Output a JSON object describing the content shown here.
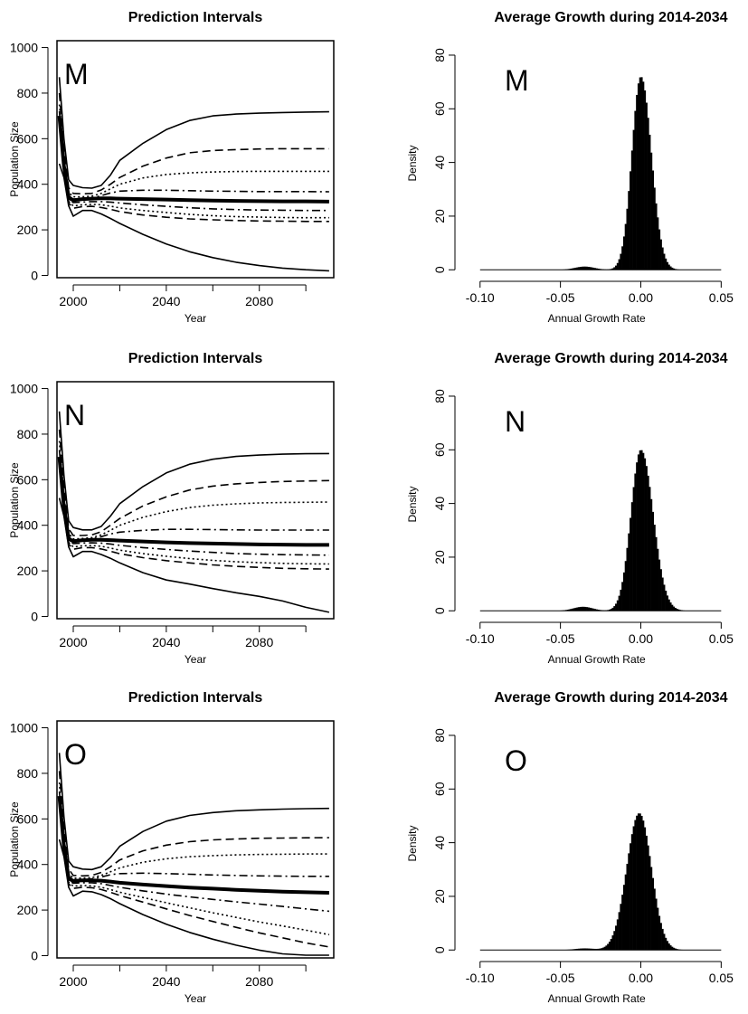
{
  "chart_data": [
    {
      "type": "line",
      "panel": "M",
      "title": "Prediction Intervals",
      "xlabel": "Year",
      "ylabel": "Population Size",
      "xlim": [
        1993,
        2112
      ],
      "ylim": [
        -10,
        1030
      ],
      "xticks": [
        2000,
        2040,
        2080
      ],
      "xticks_minor": [
        2020,
        2060,
        2100
      ],
      "yticks": [
        0,
        200,
        400,
        600,
        800,
        1000
      ],
      "x": [
        1994,
        1996,
        1998,
        2000,
        2004,
        2008,
        2012,
        2016,
        2020,
        2030,
        2040,
        2050,
        2060,
        2070,
        2080,
        2090,
        2100,
        2110
      ],
      "series": [
        {
          "style": "solid",
          "values": [
            870,
            600,
            420,
            395,
            385,
            383,
            395,
            440,
            505,
            580,
            640,
            680,
            700,
            708,
            712,
            715,
            717,
            718
          ]
        },
        {
          "style": "dashed",
          "values": [
            800,
            560,
            385,
            360,
            358,
            360,
            375,
            400,
            430,
            480,
            515,
            538,
            548,
            552,
            555,
            556,
            556,
            556
          ]
        },
        {
          "style": "dotted",
          "values": [
            750,
            520,
            365,
            345,
            345,
            348,
            360,
            380,
            400,
            428,
            443,
            450,
            454,
            456,
            457,
            457,
            457,
            457
          ]
        },
        {
          "style": "dashdot",
          "values": [
            720,
            500,
            350,
            335,
            335,
            340,
            350,
            362,
            370,
            374,
            374,
            372,
            370,
            369,
            368,
            368,
            368,
            367
          ]
        },
        {
          "style": "bold",
          "values": [
            700,
            480,
            340,
            330,
            335,
            337,
            338,
            338,
            337,
            335,
            333,
            330,
            328,
            327,
            326,
            325,
            325,
            324
          ]
        },
        {
          "style": "dashdot",
          "values": [
            690,
            470,
            332,
            320,
            322,
            324,
            324,
            322,
            318,
            310,
            303,
            297,
            292,
            289,
            287,
            286,
            285,
            285
          ]
        },
        {
          "style": "dotted",
          "values": [
            680,
            460,
            325,
            305,
            310,
            312,
            310,
            304,
            296,
            285,
            276,
            268,
            262,
            258,
            256,
            254,
            253,
            253
          ]
        },
        {
          "style": "dashed",
          "values": [
            670,
            450,
            318,
            295,
            302,
            303,
            298,
            290,
            280,
            265,
            255,
            248,
            244,
            241,
            239,
            238,
            237,
            237
          ]
        },
        {
          "style": "solid",
          "values": [
            490,
            430,
            305,
            260,
            285,
            285,
            270,
            250,
            228,
            180,
            138,
            104,
            78,
            58,
            43,
            32,
            25,
            20
          ]
        }
      ]
    },
    {
      "type": "bar",
      "panel": "M",
      "title": "Average Growth during 2014-2034",
      "xlabel": "Annual Growth Rate",
      "ylabel": "Density",
      "xlim": [
        -0.11,
        0.056
      ],
      "ylim": [
        -1.6,
        81
      ],
      "xticks": [
        "-0.10",
        "-0.05",
        "0.00",
        "0.05"
      ],
      "yticks": [
        0,
        20,
        40,
        60,
        80
      ],
      "histogram": {
        "center": 0.0,
        "peak": 72,
        "sigma_left": 0.0056,
        "sigma_right": 0.0065,
        "bin_width": 0.001,
        "range": [
          -0.06,
          0.04
        ],
        "tail_center": -0.035,
        "tail_height": 1.2
      }
    },
    {
      "type": "line",
      "panel": "N",
      "title": "Prediction Intervals",
      "xlabel": "Year",
      "ylabel": "Population Size",
      "xlim": [
        1993,
        2112
      ],
      "ylim": [
        -10,
        1030
      ],
      "xticks": [
        2000,
        2040,
        2080
      ],
      "xticks_minor": [
        2020,
        2060,
        2100
      ],
      "yticks": [
        0,
        200,
        400,
        600,
        800,
        1000
      ],
      "x": [
        1994,
        1996,
        1998,
        2000,
        2004,
        2008,
        2012,
        2016,
        2020,
        2030,
        2040,
        2050,
        2060,
        2070,
        2080,
        2090,
        2100,
        2110
      ],
      "series": [
        {
          "style": "solid",
          "values": [
            900,
            620,
            420,
            390,
            380,
            380,
            395,
            440,
            495,
            570,
            630,
            668,
            690,
            702,
            708,
            712,
            714,
            715
          ]
        },
        {
          "style": "dashed",
          "values": [
            820,
            570,
            385,
            355,
            355,
            358,
            372,
            400,
            430,
            485,
            525,
            555,
            572,
            582,
            588,
            592,
            594,
            596
          ]
        },
        {
          "style": "dotted",
          "values": [
            770,
            530,
            365,
            340,
            342,
            346,
            358,
            378,
            400,
            435,
            460,
            478,
            488,
            494,
            498,
            500,
            501,
            502
          ]
        },
        {
          "style": "dashdot",
          "values": [
            730,
            505,
            350,
            332,
            334,
            340,
            350,
            362,
            370,
            378,
            382,
            382,
            381,
            380,
            379,
            379,
            379,
            379
          ]
        },
        {
          "style": "bold",
          "values": [
            700,
            480,
            340,
            330,
            334,
            336,
            336,
            335,
            333,
            329,
            325,
            322,
            320,
            318,
            316,
            315,
            314,
            314
          ]
        },
        {
          "style": "dashdot",
          "values": [
            690,
            470,
            332,
            320,
            322,
            323,
            322,
            318,
            312,
            302,
            294,
            287,
            281,
            276,
            273,
            271,
            270,
            269
          ]
        },
        {
          "style": "dotted",
          "values": [
            680,
            460,
            325,
            305,
            310,
            311,
            308,
            300,
            291,
            276,
            264,
            254,
            246,
            240,
            236,
            233,
            231,
            230
          ]
        },
        {
          "style": "dashed",
          "values": [
            670,
            450,
            318,
            295,
            302,
            302,
            296,
            286,
            275,
            258,
            245,
            235,
            226,
            220,
            215,
            211,
            209,
            208
          ]
        },
        {
          "style": "solid",
          "values": [
            520,
            440,
            305,
            262,
            285,
            285,
            272,
            255,
            235,
            192,
            160,
            142,
            122,
            104,
            88,
            68,
            40,
            18
          ]
        }
      ]
    },
    {
      "type": "bar",
      "panel": "N",
      "title": "Average Growth during 2014-2034",
      "xlabel": "Annual Growth Rate",
      "ylabel": "Density",
      "xlim": [
        -0.11,
        0.056
      ],
      "ylim": [
        -1.6,
        81
      ],
      "xticks": [
        "-0.10",
        "-0.05",
        "0.00",
        "0.05"
      ],
      "yticks": [
        0,
        20,
        40,
        60,
        80
      ],
      "histogram": {
        "center": 0.0,
        "peak": 60,
        "sigma_left": 0.0062,
        "sigma_right": 0.0076,
        "bin_width": 0.001,
        "range": [
          -0.065,
          0.045
        ],
        "tail_center": -0.036,
        "tail_height": 1.5
      }
    },
    {
      "type": "line",
      "panel": "O",
      "title": "Prediction Intervals",
      "xlabel": "Year",
      "ylabel": "Population Size",
      "xlim": [
        1993,
        2112
      ],
      "ylim": [
        -10,
        1030
      ],
      "xticks": [
        2000,
        2040,
        2080
      ],
      "xticks_minor": [
        2020,
        2060,
        2100
      ],
      "yticks": [
        0,
        200,
        400,
        600,
        800,
        1000
      ],
      "x": [
        1994,
        1996,
        1998,
        2000,
        2004,
        2008,
        2012,
        2016,
        2020,
        2030,
        2040,
        2050,
        2060,
        2070,
        2080,
        2090,
        2100,
        2110
      ],
      "series": [
        {
          "style": "solid",
          "values": [
            890,
            610,
            415,
            390,
            380,
            378,
            390,
            430,
            480,
            545,
            590,
            615,
            628,
            636,
            640,
            643,
            645,
            646
          ]
        },
        {
          "style": "dashed",
          "values": [
            810,
            560,
            380,
            352,
            350,
            352,
            365,
            390,
            420,
            460,
            485,
            500,
            508,
            512,
            515,
            516,
            517,
            518
          ]
        },
        {
          "style": "dotted",
          "values": [
            760,
            520,
            360,
            340,
            340,
            343,
            352,
            368,
            385,
            410,
            425,
            434,
            439,
            442,
            444,
            445,
            446,
            446
          ]
        },
        {
          "style": "dashdot",
          "values": [
            720,
            500,
            348,
            332,
            333,
            337,
            345,
            355,
            360,
            362,
            360,
            357,
            354,
            352,
            350,
            349,
            348,
            348
          ]
        },
        {
          "style": "bold",
          "values": [
            700,
            480,
            338,
            328,
            330,
            330,
            329,
            325,
            320,
            312,
            305,
            299,
            294,
            289,
            285,
            281,
            278,
            276
          ]
        },
        {
          "style": "dashdot",
          "values": [
            690,
            470,
            330,
            318,
            320,
            320,
            316,
            308,
            300,
            284,
            270,
            258,
            247,
            236,
            226,
            216,
            205,
            195
          ]
        },
        {
          "style": "dotted",
          "values": [
            680,
            460,
            322,
            305,
            308,
            306,
            300,
            290,
            278,
            255,
            232,
            210,
            188,
            168,
            148,
            130,
            112,
            92
          ]
        },
        {
          "style": "dashed",
          "values": [
            670,
            450,
            315,
            295,
            300,
            298,
            290,
            278,
            264,
            235,
            205,
            176,
            150,
            124,
            100,
            78,
            56,
            38
          ]
        },
        {
          "style": "solid",
          "values": [
            510,
            435,
            300,
            262,
            283,
            280,
            268,
            250,
            228,
            180,
            138,
            102,
            72,
            46,
            24,
            8,
            2,
            2
          ]
        }
      ]
    },
    {
      "type": "bar",
      "panel": "O",
      "title": "Average Growth during 2014-2034",
      "xlabel": "Annual Growth Rate",
      "ylabel": "Density",
      "xlim": [
        -0.11,
        0.056
      ],
      "ylim": [
        -1.6,
        81
      ],
      "xticks": [
        "-0.10",
        "-0.05",
        "0.00",
        "0.05"
      ],
      "yticks": [
        0,
        20,
        40,
        60,
        80
      ],
      "histogram": {
        "center": -0.001,
        "peak": 51,
        "sigma_left": 0.0078,
        "sigma_right": 0.0075,
        "bin_width": 0.001,
        "range": [
          -0.06,
          0.045
        ],
        "tail_center": -0.035,
        "tail_height": 0.6
      }
    }
  ]
}
